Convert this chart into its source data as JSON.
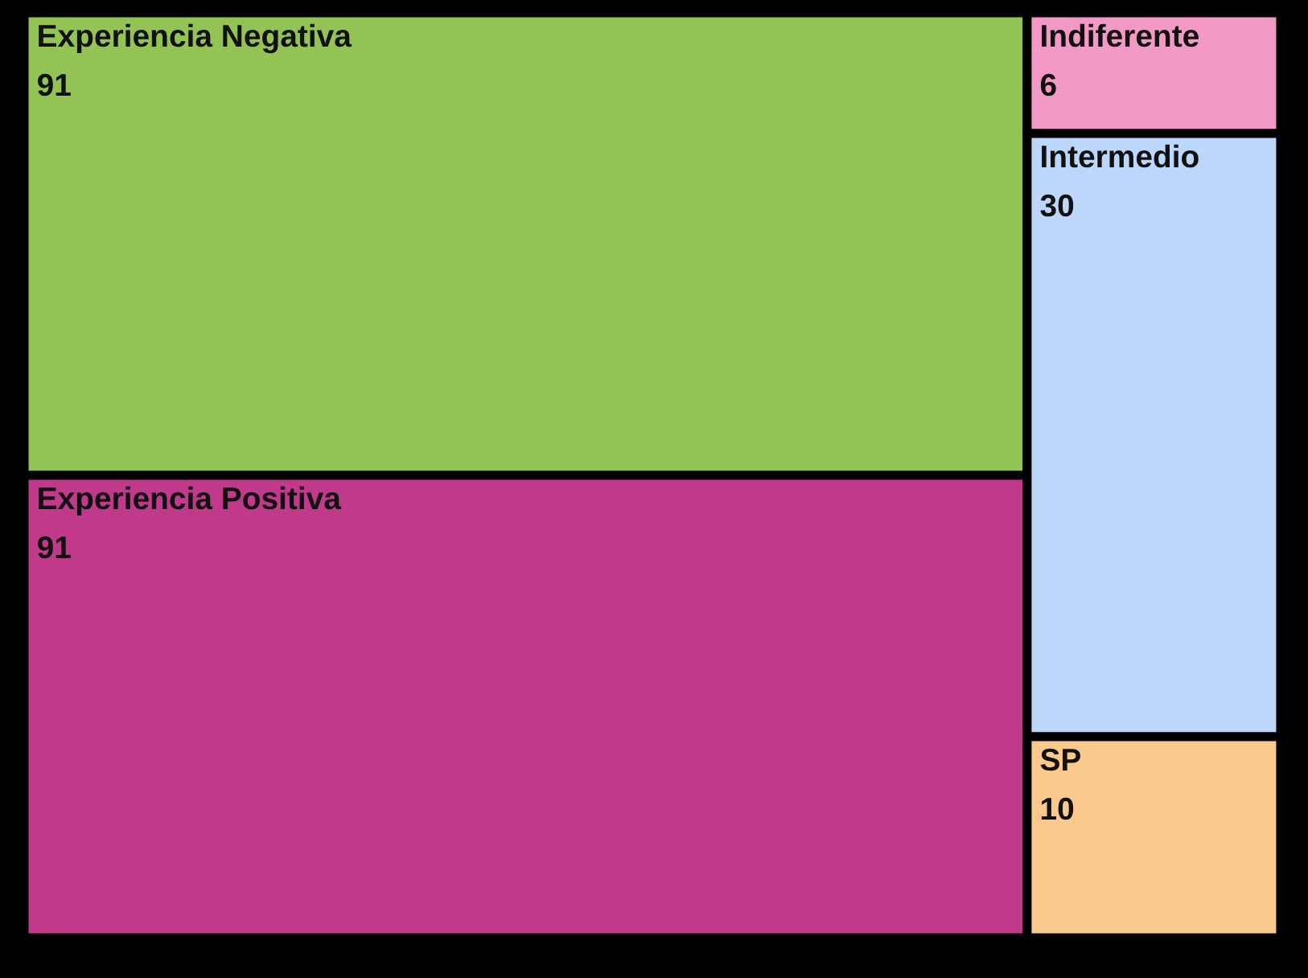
{
  "chart_data": {
    "type": "other",
    "categories": [
      "Experiencia Negativa",
      "Experiencia Positiva",
      "Indiferente",
      "Intermedio",
      "SP"
    ],
    "values": [
      91,
      91,
      6,
      30,
      10
    ],
    "colors": [
      "#93c355",
      "#c0398a",
      "#f29ac5",
      "#bdd7fb",
      "#fbc98c"
    ],
    "data_labels": true
  }
}
